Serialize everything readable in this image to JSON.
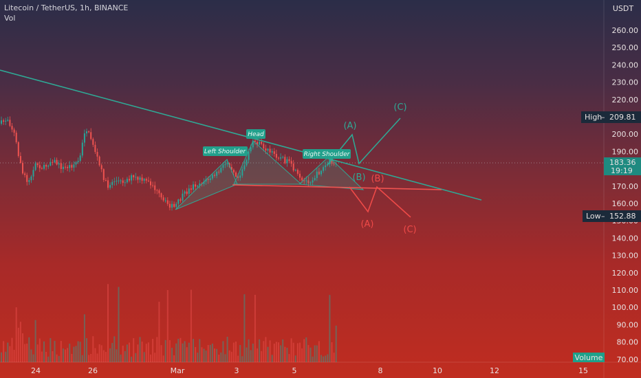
{
  "header": {
    "symbol_line": "Litecoin / TetherUS, 1h, BINANCE",
    "indicator": "Vol"
  },
  "chart_data": {
    "type": "candlestick",
    "currency_label": "USDT",
    "y_ticks": [
      "260.00",
      "250.00",
      "240.00",
      "230.00",
      "220.00",
      "210.00",
      "200.00",
      "190.00",
      "180.00",
      "170.00",
      "160.00",
      "150.00",
      "140.00",
      "130.00",
      "120.00",
      "110.00",
      "100.00",
      "90.00",
      "80.00",
      "70.00"
    ],
    "x_ticks": [
      "24",
      "26",
      "Mar",
      "3",
      "5",
      "8",
      "10",
      "12",
      "15"
    ],
    "high_badge": {
      "label": "High",
      "value": "209.81"
    },
    "low_badge": {
      "label": "Low",
      "value": "152.88"
    },
    "last_price": {
      "value": "183.36",
      "countdown": "19:19"
    },
    "volume_badge": "Volume",
    "pattern_labels": [
      "Left Shoulder",
      "Head",
      "Right Shoulder"
    ],
    "bull_wave_labels": [
      "(A)",
      "(B)",
      "(C)"
    ],
    "bear_wave_labels": [
      "(A)",
      "(B)",
      "(C)"
    ],
    "colors": {
      "up": "#26a69a",
      "down": "#ef5350",
      "trendline": "#2fa895",
      "neckline": "#ef5350",
      "bull_path": "#2fa895",
      "bear_path": "#ef4a48",
      "high_badge": "#1b2a3a",
      "low_badge": "#1b2a3a",
      "price_badge": "#1e8a80",
      "volume_badge": "#1ea08a"
    }
  }
}
